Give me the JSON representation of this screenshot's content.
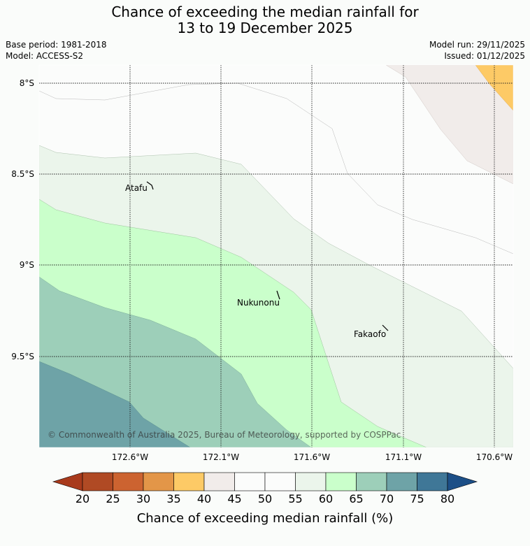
{
  "header": {
    "title_line1": "Chance of exceeding the median rainfall for",
    "title_line2": "13 to 19 December 2025",
    "base_period": "Base period: 1981-2018",
    "model": "Model: ACCESS-S2",
    "model_run": "Model run: 29/11/2025",
    "issued": "Issued: 01/12/2025"
  },
  "map": {
    "lat_labels": [
      "8°S",
      "8.5°S",
      "9°S",
      "9.5°S"
    ],
    "lon_labels": [
      "172.6°W",
      "172.1°W",
      "171.6°W",
      "171.1°W",
      "170.6°W"
    ],
    "places": [
      {
        "name": "Atafu"
      },
      {
        "name": "Nukunonu"
      },
      {
        "name": "Fakaofo"
      }
    ],
    "copyright": "© Commonwealth of Australia 2025, Bureau of Meteorology, supported by COSPPac"
  },
  "colorbar": {
    "ticks": [
      "20",
      "25",
      "30",
      "35",
      "40",
      "45",
      "50",
      "55",
      "60",
      "65",
      "70",
      "75",
      "80"
    ],
    "colors": [
      "#a83a1c",
      "#b04a24",
      "#cc6330",
      "#e39648",
      "#fdca66",
      "#f1ecea",
      "#fbfcfb",
      "#fbfcfb",
      "#ebf5eb",
      "#caffcb",
      "#9dcfb9",
      "#6ea3a7",
      "#3f7797",
      "#1c4f87"
    ],
    "title": "Chance of exceeding median rainfall (%)"
  }
}
